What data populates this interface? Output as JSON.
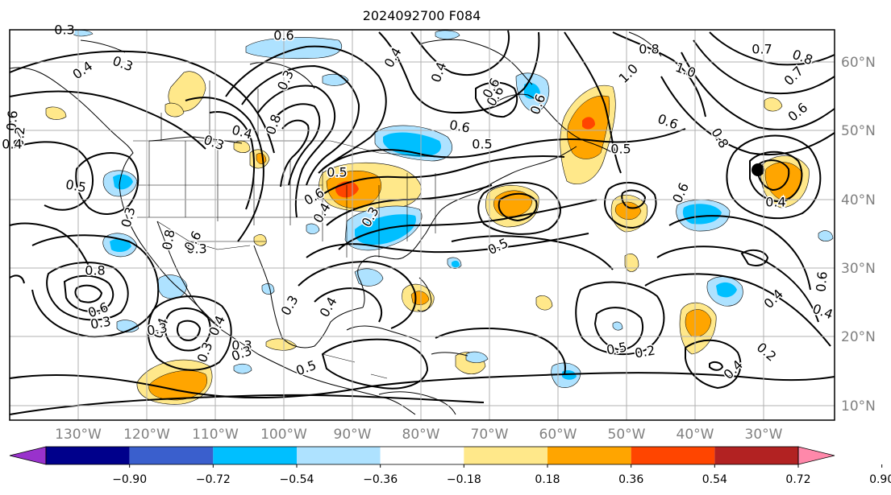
{
  "title": "2024092700 F084",
  "lon_labels": [
    "130°W",
    "120°W",
    "110°W",
    "100°W",
    "90°W",
    "80°W",
    "70°W",
    "60°W",
    "50°W",
    "40°W",
    "30°W"
  ],
  "lat_labels": [
    "60°N",
    "50°N",
    "40°N",
    "30°N",
    "20°N",
    "10°N"
  ],
  "colorbar": {
    "ticks": [
      "−0.90",
      "−0.72",
      "−0.54",
      "−0.36",
      "−0.18",
      "0.18",
      "0.36",
      "0.54",
      "0.72",
      "0.90"
    ],
    "colors": [
      "#9932cc",
      "#00008b",
      "#3a5fcd",
      "#00bfff",
      "#aee2ff",
      "#ffffff",
      "#ffe88a",
      "#ffa500",
      "#ff4500",
      "#b22222",
      "#ff88aa"
    ]
  },
  "contour_labels": [
    "0.6",
    "0.4",
    "0.3",
    "0.3",
    "0.4",
    "0.3",
    "0.4",
    "0.6",
    "0.4",
    "0.6",
    "0.6",
    "0.6",
    "0.8",
    "0.7",
    "0.8",
    "1.0",
    "1.0",
    "0.7",
    "0.8",
    "0.6",
    "0.6",
    "0.5",
    "0.8",
    "0.5",
    "0.5",
    "0.6",
    "0.6",
    "0.5",
    "0.4",
    "0.2",
    "0.5",
    "0.3",
    "0.3",
    "0.4",
    "0.4",
    "0.6",
    "0.8",
    "0.6",
    "0.3",
    "0.3",
    "0.4",
    "0.4",
    "0.6",
    "0.5",
    "0.4",
    "0.2",
    "0.4",
    "0.2",
    "0.3",
    "0.4",
    "0.3",
    "0.6",
    "0.8",
    "0.3",
    "0.5",
    "0.4",
    "0.3",
    "0.3",
    "0.3"
  ],
  "shading": {
    "positive_color_light": "#ffe88a",
    "positive_color_mid": "#ffa500",
    "positive_color_strong": "#ff4500",
    "negative_color_light": "#aee2ff",
    "negative_color_mid": "#00bfff"
  }
}
